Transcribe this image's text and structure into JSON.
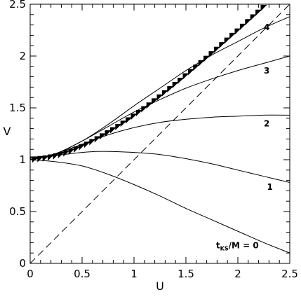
{
  "chart_data": {
    "type": "line",
    "title": "",
    "xlabel": "U",
    "ylabel": "V",
    "xlim": [
      0,
      2.5
    ],
    "ylim": [
      0,
      2.5
    ],
    "xticks": [
      0,
      0.5,
      1,
      1.5,
      2,
      2.5
    ],
    "yticks": [
      0,
      0.5,
      1,
      1.5,
      2,
      2.5
    ],
    "xtick_labels": [
      "0",
      "0.5",
      "1",
      "1.5",
      "2",
      "2.5"
    ],
    "ytick_labels": [
      "0",
      "0.5",
      "1",
      "1.5",
      "2",
      "2.5"
    ],
    "grid": false,
    "series": [
      {
        "label": "0",
        "label_prefix": "t",
        "label_subscript": "KS",
        "label_middle": "/M = ",
        "style": "solid",
        "x": [
          0,
          0.25,
          0.5,
          0.75,
          1.0,
          1.25,
          1.5,
          1.75,
          2.0,
          2.25,
          2.5
        ],
        "y": [
          1.0,
          0.98,
          0.94,
          0.86,
          0.76,
          0.65,
          0.53,
          0.42,
          0.31,
          0.2,
          0.1
        ]
      },
      {
        "label": "1",
        "style": "solid",
        "x": [
          0,
          0.25,
          0.5,
          0.7,
          1.0,
          1.25,
          1.5,
          1.75,
          2.0,
          2.25,
          2.5
        ],
        "y": [
          1.0,
          1.04,
          1.07,
          1.08,
          1.07,
          1.05,
          1.01,
          0.96,
          0.9,
          0.84,
          0.78
        ]
      },
      {
        "label": "2",
        "style": "solid",
        "x": [
          0,
          0.25,
          0.5,
          0.75,
          1.0,
          1.25,
          1.5,
          1.75,
          2.0,
          2.25,
          2.5
        ],
        "y": [
          1.0,
          1.06,
          1.15,
          1.24,
          1.31,
          1.36,
          1.39,
          1.41,
          1.42,
          1.43,
          1.43
        ]
      },
      {
        "label": "3",
        "style": "solid",
        "x": [
          0,
          0.25,
          0.5,
          0.75,
          1.0,
          1.25,
          1.5,
          1.75,
          2.0,
          2.25,
          2.5
        ],
        "y": [
          1.0,
          1.06,
          1.18,
          1.32,
          1.46,
          1.58,
          1.69,
          1.78,
          1.86,
          1.93,
          2.0
        ]
      },
      {
        "label": "4",
        "style": "solid",
        "x": [
          0,
          0.25,
          0.5,
          0.75,
          1.0,
          1.25,
          1.5,
          1.75,
          2.0,
          2.25,
          2.5
        ],
        "y": [
          1.0,
          1.06,
          1.18,
          1.34,
          1.52,
          1.69,
          1.86,
          2.01,
          2.14,
          2.27,
          2.38
        ]
      },
      {
        "label": "",
        "style": "dashed",
        "x": [
          0,
          2.5
        ],
        "y": [
          0,
          2.5
        ]
      },
      {
        "label": "",
        "style": "triangles",
        "x": [
          0.0,
          0.05,
          0.1,
          0.15,
          0.2,
          0.25,
          0.3,
          0.35,
          0.4,
          0.45,
          0.5,
          0.55,
          0.6,
          0.65,
          0.7,
          0.75,
          0.8,
          0.85,
          0.9,
          0.95,
          1.0,
          1.05,
          1.1,
          1.15,
          1.2,
          1.25,
          1.3,
          1.35,
          1.4,
          1.45,
          1.5,
          1.55,
          1.6,
          1.65,
          1.7,
          1.75,
          1.8,
          1.85,
          1.9,
          1.95,
          2.0,
          2.05,
          2.1,
          2.15,
          2.2,
          2.25,
          2.3
        ],
        "y": [
          1.0,
          1.001,
          1.005,
          1.011,
          1.02,
          1.031,
          1.044,
          1.06,
          1.078,
          1.098,
          1.12,
          1.144,
          1.169,
          1.196,
          1.224,
          1.253,
          1.283,
          1.314,
          1.346,
          1.378,
          1.414,
          1.449,
          1.486,
          1.522,
          1.562,
          1.6,
          1.64,
          1.679,
          1.72,
          1.76,
          1.803,
          1.844,
          1.887,
          1.929,
          1.972,
          2.016,
          2.059,
          2.104,
          2.148,
          2.193,
          2.236,
          2.281,
          2.326,
          2.372,
          2.417,
          2.463,
          2.509
        ]
      }
    ]
  }
}
